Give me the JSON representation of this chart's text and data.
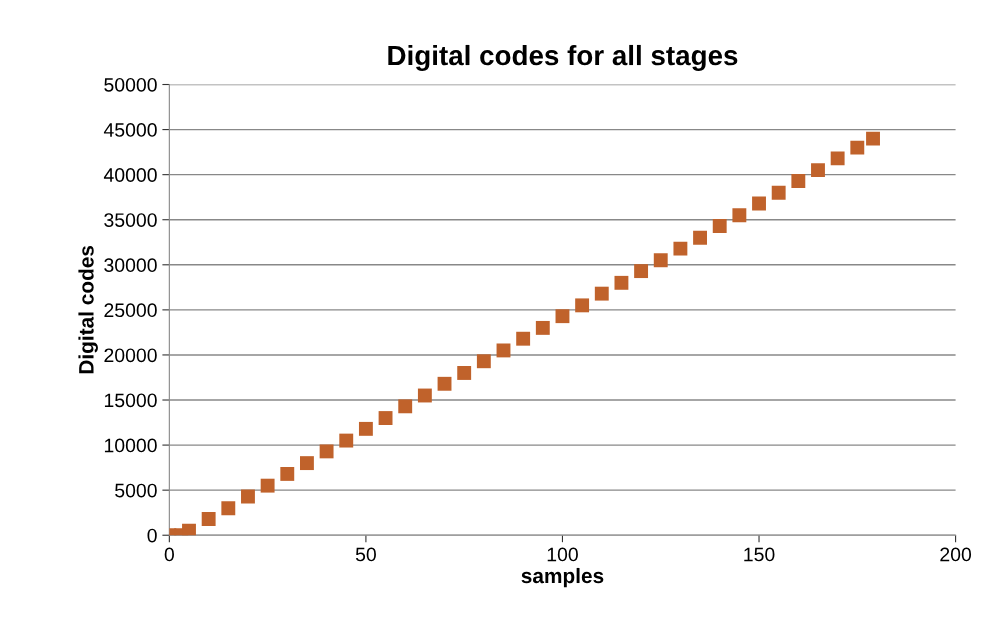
{
  "chart_data": {
    "type": "scatter",
    "title": "Digital codes for all stages",
    "xlabel": "samples",
    "ylabel": "Digital codes",
    "series": [
      {
        "color": "#c0622b",
        "x": [
          0,
          3,
          5,
          10,
          15,
          20,
          25,
          30,
          35,
          40,
          45,
          50,
          55,
          60,
          65,
          70,
          75,
          80,
          85,
          90,
          95,
          100,
          105,
          110,
          115,
          120,
          125,
          130,
          135,
          140,
          145,
          150,
          155,
          160,
          165,
          170,
          175,
          179
        ],
        "values": [
          0,
          0,
          500,
          1800,
          3000,
          4300,
          5500,
          6800,
          8000,
          9300,
          10500,
          11800,
          13000,
          14300,
          15500,
          16800,
          18000,
          19300,
          20500,
          21800,
          23000,
          24300,
          25500,
          26800,
          28000,
          29300,
          30500,
          31800,
          33000,
          34300,
          35500,
          36800,
          38000,
          39300,
          40500,
          41800,
          43000,
          44000
        ]
      }
    ],
    "marker": "square",
    "xlim": [
      0,
      200
    ],
    "xticks": [
      0,
      50,
      100,
      150,
      200
    ],
    "ylim": [
      0,
      50000
    ],
    "yticks": [
      0,
      5000,
      10000,
      15000,
      20000,
      25000,
      30000,
      35000,
      40000,
      45000,
      50000
    ],
    "grid": "y",
    "legend": false
  }
}
